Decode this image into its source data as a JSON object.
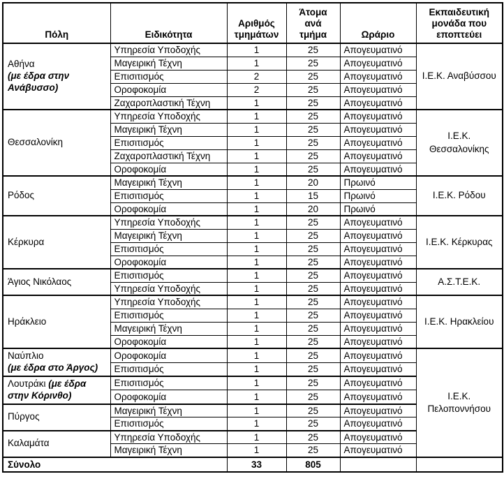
{
  "table": {
    "header": {
      "city": "Πόλη",
      "specialty": "Ειδικότητα",
      "departments": "Αριθμός\nτμημάτων",
      "people": "Άτομα\nανά\nτμήμα",
      "schedule": "Ωράριο",
      "unit": "Εκπαιδευτική\nμονάδα που\nεποπτεύει"
    },
    "groups": [
      {
        "city": "Αθήνα",
        "city_note": "(με έδρα στην Ανάβυσσο)",
        "note_inline": false,
        "unit": "Ι.Ε.Κ. Αναβύσσου",
        "rows": [
          {
            "specialty": "Υπηρεσία Υποδοχής",
            "departments": "1",
            "people": "25",
            "schedule": "Απογευματινό"
          },
          {
            "specialty": "Μαγειρική Τέχνη",
            "departments": "1",
            "people": "25",
            "schedule": "Απογευματινό"
          },
          {
            "specialty": "Επισιτισμός",
            "departments": "2",
            "people": "25",
            "schedule": "Απογευματινό"
          },
          {
            "specialty": "Οροφοκομία",
            "departments": "2",
            "people": "25",
            "schedule": "Απογευματινό"
          },
          {
            "specialty": "Ζαχαροπλαστική Τέχνη",
            "departments": "1",
            "people": "25",
            "schedule": "Απογευματινό"
          }
        ]
      },
      {
        "city": "Θεσσαλονίκη",
        "unit": "Ι.Ε.Κ. Θεσσαλονίκης",
        "rows": [
          {
            "specialty": "Υπηρεσία Υποδοχής",
            "departments": "1",
            "people": "25",
            "schedule": "Απογευματινό"
          },
          {
            "specialty": "Μαγειρική Τέχνη",
            "departments": "1",
            "people": "25",
            "schedule": "Απογευματινό"
          },
          {
            "specialty": "Επισιτισμός",
            "departments": "1",
            "people": "25",
            "schedule": "Απογευματινό"
          },
          {
            "specialty": "Ζαχαροπλαστική Τέχνη",
            "departments": "1",
            "people": "25",
            "schedule": "Απογευματινό"
          },
          {
            "specialty": "Οροφοκομία",
            "departments": "1",
            "people": "25",
            "schedule": "Απογευματινό"
          }
        ]
      },
      {
        "city": "Ρόδος",
        "unit": "Ι.Ε.Κ. Ρόδου",
        "rows": [
          {
            "specialty": "Μαγειρική Τέχνη",
            "departments": "1",
            "people": "20",
            "schedule": "Πρωινό"
          },
          {
            "specialty": "Επισιτισμός",
            "departments": "1",
            "people": "15",
            "schedule": "Πρωινό"
          },
          {
            "specialty": "Οροφοκομία",
            "departments": "1",
            "people": "20",
            "schedule": "Πρωινό"
          }
        ]
      },
      {
        "city": "Κέρκυρα",
        "unit": "Ι.Ε.Κ. Κέρκυρας",
        "rows": [
          {
            "specialty": "Υπηρεσία Υποδοχής",
            "departments": "1",
            "people": "25",
            "schedule": "Απογευματινό"
          },
          {
            "specialty": "Μαγειρική Τέχνη",
            "departments": "1",
            "people": "25",
            "schedule": "Απογευματινό"
          },
          {
            "specialty": "Επισιτισμός",
            "departments": "1",
            "people": "25",
            "schedule": "Απογευματινό"
          },
          {
            "specialty": "Οροφοκομία",
            "departments": "1",
            "people": "25",
            "schedule": "Απογευματινό"
          }
        ]
      },
      {
        "city": "Άγιος Νικόλαος",
        "unit": "Α.Σ.Τ.Ε.Κ.",
        "rows": [
          {
            "specialty": "Επισιτισμός",
            "departments": "1",
            "people": "25",
            "schedule": "Απογευματινό"
          },
          {
            "specialty": "Υπηρεσία Υποδοχής",
            "departments": "1",
            "people": "25",
            "schedule": "Απογευματινό"
          }
        ]
      },
      {
        "city": "Ηράκλειο",
        "unit": "Ι.Ε.Κ. Ηρακλείου",
        "rows": [
          {
            "specialty": "Υπηρεσία Υποδοχής",
            "departments": "1",
            "people": "25",
            "schedule": "Απογευματινό"
          },
          {
            "specialty": "Επισιτισμός",
            "departments": "1",
            "people": "25",
            "schedule": "Απογευματινό"
          },
          {
            "specialty": "Μαγειρική Τέχνη",
            "departments": "1",
            "people": "25",
            "schedule": "Απογευματινό"
          },
          {
            "specialty": "Οροφοκομία",
            "departments": "1",
            "people": "25",
            "schedule": "Απογευματινό"
          }
        ]
      },
      {
        "city": "Ναύπλιο",
        "city_note": "(με έδρα στο Άργος)",
        "note_inline": false,
        "unit": "Ι.Ε.Κ. Πελοποννήσου",
        "rows": [
          {
            "specialty": "Οροφοκομία",
            "departments": "1",
            "people": "25",
            "schedule": "Απογευματινό"
          },
          {
            "specialty": "Επισιτισμός",
            "departments": "1",
            "people": "25",
            "schedule": "Απογευματινό"
          }
        ]
      },
      {
        "city": "Λουτράκι",
        "city_note": "(με έδρα στην Κόρινθο)",
        "note_inline": true,
        "unit": "Ι.Ε.Κ. Πελοποννήσου",
        "rows": [
          {
            "specialty": "Επισιτισμός",
            "departments": "1",
            "people": "25",
            "schedule": "Απογευματινό"
          },
          {
            "specialty": "Οροφοκομία",
            "departments": "1",
            "people": "25",
            "schedule": "Απογευματινό"
          }
        ]
      },
      {
        "city": "Πύργος",
        "unit": "Ι.Ε.Κ. Πελοποννήσου",
        "rows": [
          {
            "specialty": "Μαγειρική Τέχνη",
            "departments": "1",
            "people": "25",
            "schedule": "Απογευματινό"
          },
          {
            "specialty": "Επισιτισμός",
            "departments": "1",
            "people": "25",
            "schedule": "Απογευματινό"
          }
        ]
      },
      {
        "city": "Καλαμάτα",
        "unit": "Ι.Ε.Κ. Πελοποννήσου",
        "rows": [
          {
            "specialty": "Υπηρεσία Υποδοχής",
            "departments": "1",
            "people": "25",
            "schedule": "Απογευματινό"
          },
          {
            "specialty": "Μαγειρική Τέχνη",
            "departments": "1",
            "people": "25",
            "schedule": "Απογευματινό"
          }
        ]
      }
    ],
    "total": {
      "label": "Σύνολο",
      "departments": "33",
      "people": "805",
      "schedule": "",
      "unit": ""
    },
    "colors": {
      "border": "#000000",
      "text": "#000000",
      "background": "#ffffff"
    }
  }
}
